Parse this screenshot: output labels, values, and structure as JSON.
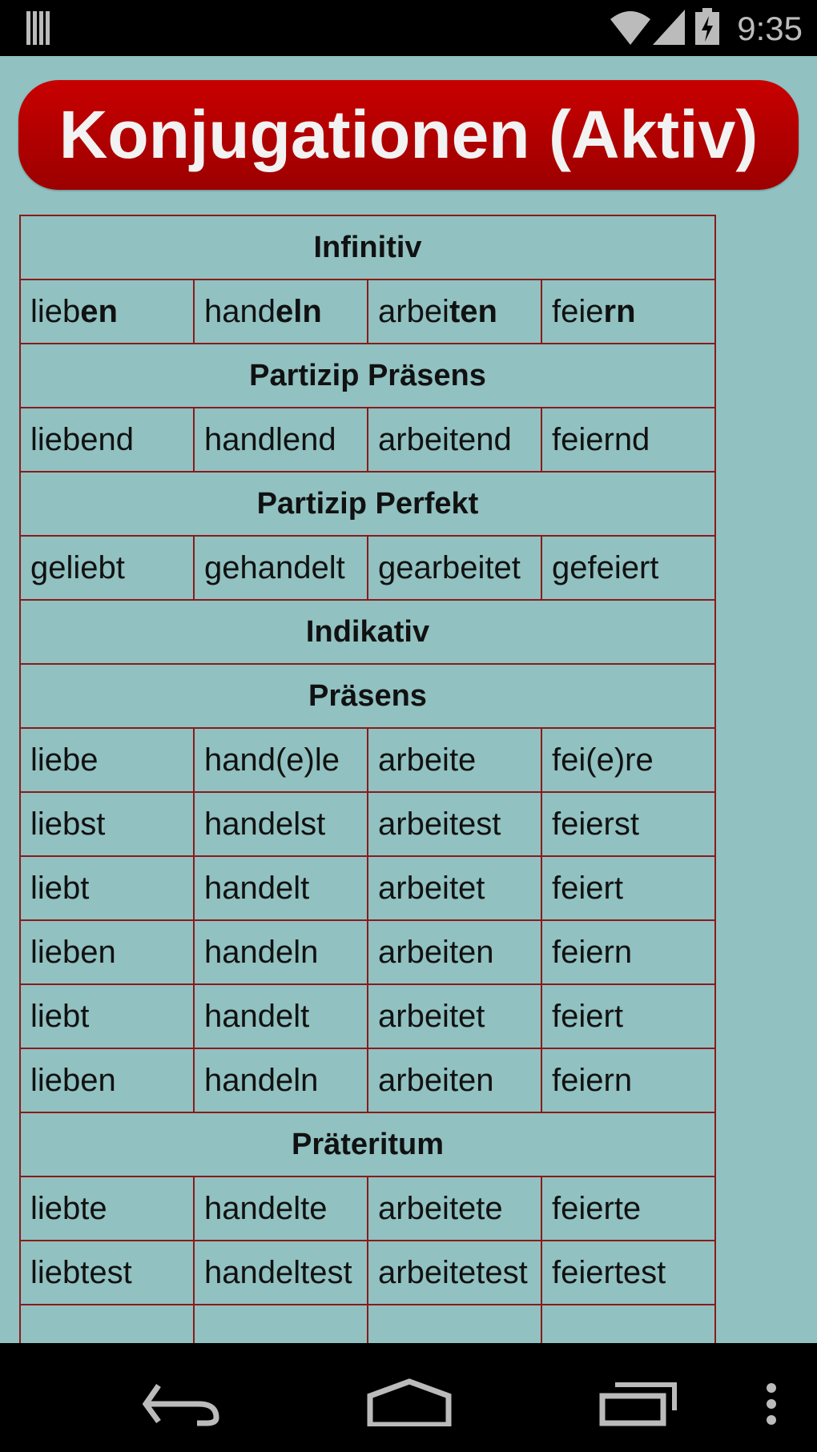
{
  "status_bar": {
    "time": "9:35",
    "icons": [
      "notification-icon",
      "wifi-icon",
      "signal-icon",
      "battery-charging-icon"
    ]
  },
  "title": "Konjugationen (Aktiv)",
  "infinitive": [
    {
      "stem": "lieb",
      "ending": "en"
    },
    {
      "stem": "hand",
      "ending": "eln"
    },
    {
      "stem": "arbei",
      "ending": "ten"
    },
    {
      "stem": "feie",
      "ending": "rn"
    }
  ],
  "sections": [
    {
      "header": "Infinitiv"
    },
    {
      "infinitive_row": true
    },
    {
      "header": "Partizip Präsens"
    },
    {
      "row": [
        "liebend",
        "handlend",
        "arbeitend",
        "feiernd"
      ]
    },
    {
      "header": "Partizip Perfekt"
    },
    {
      "row": [
        "geliebt",
        "gehandelt",
        "gearbeitet",
        "gefeiert"
      ]
    },
    {
      "header": "Indikativ"
    },
    {
      "header": "Präsens"
    },
    {
      "row": [
        "liebe",
        "hand(e)le",
        "arbeite",
        "fei(e)re"
      ]
    },
    {
      "row": [
        "liebst",
        "handelst",
        "arbeitest",
        "feierst"
      ]
    },
    {
      "row": [
        "liebt",
        "handelt",
        "arbeitet",
        "feiert"
      ]
    },
    {
      "row": [
        "lieben",
        "handeln",
        "arbeiten",
        "feiern"
      ]
    },
    {
      "row": [
        "liebt",
        "handelt",
        "arbeitet",
        "feiert"
      ]
    },
    {
      "row": [
        "lieben",
        "handeln",
        "arbeiten",
        "feiern"
      ]
    },
    {
      "header": "Präteritum"
    },
    {
      "row": [
        "liebte",
        "handelte",
        "arbeitete",
        "feierte"
      ]
    },
    {
      "row": [
        "liebtest",
        "handeltest",
        "arbeitetest",
        "feiertest"
      ]
    },
    {
      "row": [
        "",
        "",
        "",
        ""
      ]
    }
  ],
  "nav_bar": {
    "icons": [
      "back-icon",
      "home-icon",
      "recent-apps-icon",
      "overflow-menu-icon"
    ]
  }
}
